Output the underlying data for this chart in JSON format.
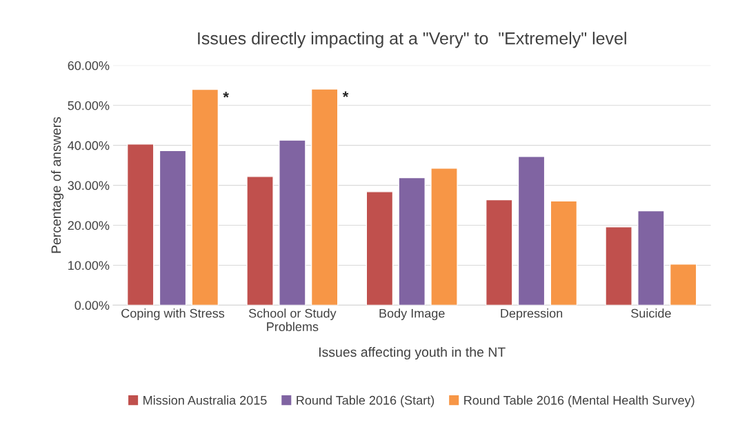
{
  "chart_data": {
    "type": "bar",
    "title": "Issues directly impacting at a \"Very\" to  \"Extremely\" level",
    "xlabel": "Issues affecting youth in the NT",
    "ylabel": "Percentage of answers",
    "categories": [
      "Coping with Stress",
      "School or Study\nProblems",
      "Body Image",
      "Depression",
      "Suicide"
    ],
    "series": [
      {
        "name": "Mission Australia 2015",
        "color": "#c0504d",
        "values": [
          40.3,
          32.2,
          28.4,
          26.4,
          19.6
        ]
      },
      {
        "name": "Round Table 2016 (Start)",
        "color": "#8064a2",
        "values": [
          38.7,
          41.3,
          31.9,
          37.2,
          23.6
        ]
      },
      {
        "name": "Round Table 2016 (Mental Health Survey)",
        "color": "#f79646",
        "values": [
          54.0,
          54.1,
          34.3,
          26.1,
          10.3
        ]
      }
    ],
    "annotations": [
      "*",
      "*"
    ],
    "ylim": [
      0,
      60
    ],
    "yticks": [
      {
        "value": 0,
        "label": "0.00%"
      },
      {
        "value": 10,
        "label": "10.00%"
      },
      {
        "value": 20,
        "label": "20.00%"
      },
      {
        "value": 30,
        "label": "30.00%"
      },
      {
        "value": 40,
        "label": "40.00%"
      },
      {
        "value": 50,
        "label": "50.00%"
      },
      {
        "value": 60,
        "label": "60.00%"
      }
    ],
    "grid": "y",
    "legend": "bottom"
  }
}
